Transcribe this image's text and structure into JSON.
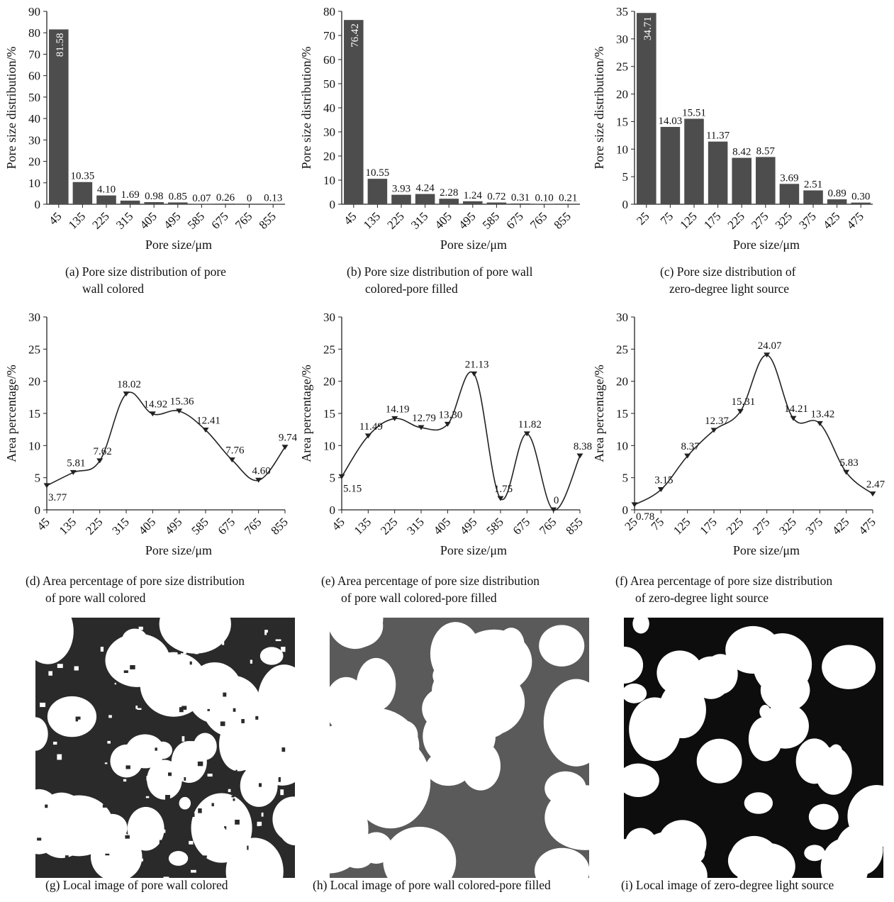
{
  "colors": {
    "bar": "#4d4d4d",
    "line": "#222222",
    "axis": "#222222",
    "pore": "#ffffff",
    "matrix_a": "#2a2a2a",
    "matrix_b": "#5a5a5a",
    "matrix_c": "#0d0d0d"
  },
  "chart_data": [
    {
      "type": "bar",
      "panel": "a",
      "caption": [
        "(a) Pore size distribution of pore",
        "wall colored"
      ],
      "categories": [
        "45",
        "135",
        "225",
        "315",
        "405",
        "495",
        "585",
        "675",
        "765",
        "855"
      ],
      "values": [
        81.58,
        10.35,
        4.1,
        1.69,
        0.98,
        0.85,
        0.07,
        0.26,
        0,
        0.13
      ],
      "labels": [
        "81.58",
        "10.35",
        "4.10",
        "1.69",
        "0.98",
        "0.85",
        "0.07",
        "0.26",
        "0",
        "0.13"
      ],
      "xlabel": "Pore size/μm",
      "ylabel": "Pore size distribution/%",
      "ylim": [
        0,
        90
      ],
      "yticks": [
        0,
        10,
        20,
        30,
        40,
        50,
        60,
        70,
        80,
        90
      ]
    },
    {
      "type": "bar",
      "panel": "b",
      "caption": [
        "(b) Pore size distribution of pore wall",
        "colored-pore filled"
      ],
      "categories": [
        "45",
        "135",
        "225",
        "315",
        "405",
        "495",
        "585",
        "675",
        "765",
        "855"
      ],
      "values": [
        76.42,
        10.55,
        3.93,
        4.24,
        2.28,
        1.24,
        0.72,
        0.31,
        0.1,
        0.21
      ],
      "labels": [
        "76.42",
        "10.55",
        "3.93",
        "4.24",
        "2.28",
        "1.24",
        "0.72",
        "0.31",
        "0.10",
        "0.21"
      ],
      "xlabel": "Pore size/μm",
      "ylabel": "Pore size distribution/%",
      "ylim": [
        0,
        80
      ],
      "yticks": [
        0,
        10,
        20,
        30,
        40,
        50,
        60,
        70,
        80
      ]
    },
    {
      "type": "bar",
      "panel": "c",
      "caption": [
        "(c) Pore size distribution of",
        "zero-degree light source"
      ],
      "categories": [
        "25",
        "75",
        "125",
        "175",
        "225",
        "275",
        "325",
        "375",
        "425",
        "475"
      ],
      "values": [
        34.71,
        14.03,
        15.51,
        11.37,
        8.42,
        8.57,
        3.69,
        2.51,
        0.89,
        0.3
      ],
      "labels": [
        "34.71",
        "14.03",
        "15.51",
        "11.37",
        "8.42",
        "8.57",
        "3.69",
        "2.51",
        "0.89",
        "0.30"
      ],
      "xlabel": "Pore size/μm",
      "ylabel": "Pore size distribution/%",
      "ylim": [
        0,
        35
      ],
      "yticks": [
        0,
        5,
        10,
        15,
        20,
        25,
        30,
        35
      ]
    },
    {
      "type": "line",
      "panel": "d",
      "caption": [
        "(d) Area percentage of pore size distribution",
        "of pore wall colored"
      ],
      "categories": [
        "45",
        "135",
        "225",
        "315",
        "405",
        "495",
        "585",
        "675",
        "765",
        "855"
      ],
      "values": [
        3.77,
        5.81,
        7.62,
        18.02,
        14.92,
        15.36,
        12.41,
        7.76,
        4.6,
        9.74
      ],
      "labels": [
        "3.77",
        "5.81",
        "7.62",
        "18.02",
        "14.92",
        "15.36",
        "12.41",
        "7.76",
        "4.60",
        "9.74"
      ],
      "xlabel": "Pore size/μm",
      "ylabel": "Area percentage/%",
      "ylim": [
        0,
        30
      ],
      "yticks": [
        0,
        5,
        10,
        15,
        20,
        25,
        30
      ]
    },
    {
      "type": "line",
      "panel": "e",
      "caption": [
        "(e) Area percentage of pore size distribution",
        "of pore wall colored-pore filled"
      ],
      "categories": [
        "45",
        "135",
        "225",
        "315",
        "405",
        "495",
        "585",
        "675",
        "765",
        "855"
      ],
      "values": [
        5.15,
        11.49,
        14.19,
        12.79,
        13.3,
        21.13,
        1.75,
        11.82,
        0,
        8.38
      ],
      "labels": [
        "5.15",
        "11.49",
        "14.19",
        "12.79",
        "13.30",
        "21.13",
        "1.75",
        "11.82",
        "0",
        "8.38"
      ],
      "xlabel": "Pore size/μm",
      "ylabel": "Area percentage/%",
      "ylim": [
        0,
        30
      ],
      "yticks": [
        0,
        5,
        10,
        15,
        20,
        25,
        30
      ]
    },
    {
      "type": "line",
      "panel": "f",
      "caption": [
        "(f) Area percentage of pore size distribution",
        "of zero-degree light source"
      ],
      "categories": [
        "25",
        "75",
        "125",
        "175",
        "225",
        "275",
        "325",
        "375",
        "425",
        "475"
      ],
      "values": [
        0.78,
        3.15,
        8.37,
        12.37,
        15.31,
        24.07,
        14.21,
        13.42,
        5.83,
        2.47
      ],
      "labels": [
        "0.78",
        "3.15",
        "8.37",
        "12.37",
        "15.31",
        "24.07",
        "14.21",
        "13.42",
        "5.83",
        "2.47"
      ],
      "xlabel": "Pore size/μm",
      "ylabel": "Area percentage/%",
      "ylim": [
        0,
        30
      ],
      "yticks": [
        0,
        5,
        10,
        15,
        20,
        25,
        30
      ]
    }
  ],
  "images": [
    {
      "panel": "g",
      "caption": "(g) Local image of pore wall colored"
    },
    {
      "panel": "h",
      "caption": "(h) Local image of pore wall colored-pore filled"
    },
    {
      "panel": "i",
      "caption": "(i) Local image of zero-degree light source"
    }
  ]
}
